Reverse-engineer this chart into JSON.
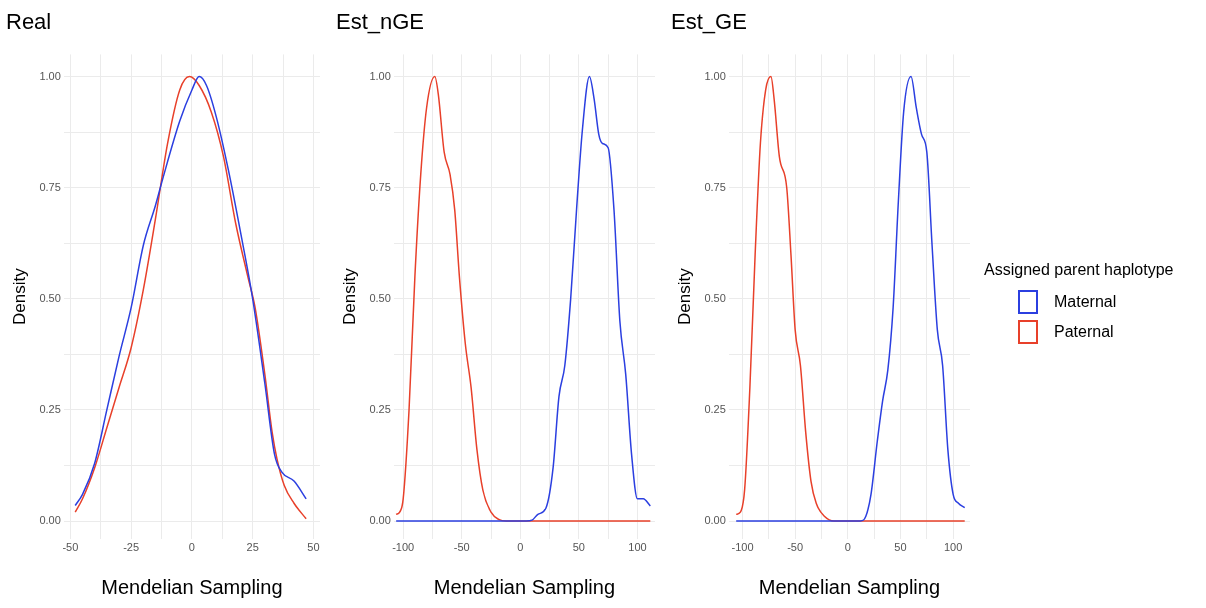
{
  "chart_data": [
    {
      "type": "line",
      "title": "Real",
      "xlabel": "Mendelian Sampling",
      "ylabel": "Density",
      "xlim": [
        -52.7,
        52.7
      ],
      "ylim": [
        -0.04,
        1.05
      ],
      "xticks": [
        -50,
        {
          "value": -37.5,
          "label": null
        },
        -25,
        {
          "value": -12.5,
          "label": null
        },
        0,
        {
          "value": 12.5,
          "label": null
        },
        25,
        {
          "value": 37.5,
          "label": null
        },
        50
      ],
      "yticks": [
        {
          "value": 0,
          "label": "0.00"
        },
        {
          "value": 0.125,
          "label": null
        },
        {
          "value": 0.25,
          "label": "0.25"
        },
        {
          "value": 0.375,
          "label": null
        },
        {
          "value": 0.5,
          "label": "0.50"
        },
        {
          "value": 0.625,
          "label": null
        },
        {
          "value": 0.75,
          "label": "0.75"
        },
        {
          "value": 0.875,
          "label": null
        },
        {
          "value": 1,
          "label": "1.00"
        }
      ],
      "grid": true,
      "legend": false,
      "marker": "none",
      "series": [
        {
          "color": "#2b3fe0",
          "x": [
            -48,
            -45,
            -40,
            -35,
            -30,
            -25,
            -20,
            -15,
            -12,
            -5,
            0,
            3,
            6,
            10,
            15,
            20,
            25,
            30,
            34,
            37,
            42,
            47
          ],
          "values": [
            0.035,
            0.06,
            0.13,
            0.25,
            0.37,
            0.48,
            0.62,
            0.71,
            0.77,
            0.9,
            0.97,
            1.0,
            0.98,
            0.91,
            0.79,
            0.65,
            0.5,
            0.31,
            0.15,
            0.11,
            0.09,
            0.05
          ]
        },
        {
          "color": "#e8402a",
          "x": [
            -48,
            -45,
            -40,
            -35,
            -30,
            -25,
            -20,
            -15,
            -10,
            -5,
            -1,
            3,
            8,
            13,
            18,
            23,
            26,
            30,
            33,
            35,
            38,
            42,
            47
          ],
          "values": [
            0.02,
            0.05,
            0.12,
            0.21,
            0.3,
            0.39,
            0.52,
            0.68,
            0.85,
            0.97,
            1.0,
            0.98,
            0.92,
            0.82,
            0.67,
            0.55,
            0.48,
            0.33,
            0.2,
            0.14,
            0.08,
            0.04,
            0.005
          ]
        }
      ]
    },
    {
      "type": "line",
      "title": "Est_nGE",
      "xlabel": "Mendelian Sampling",
      "ylabel": "Density",
      "xlim": [
        -108,
        115
      ],
      "ylim": [
        -0.04,
        1.05
      ],
      "xticks": [
        -100,
        {
          "value": -75,
          "label": null
        },
        -50,
        {
          "value": -25,
          "label": null
        },
        0,
        {
          "value": 25,
          "label": null
        },
        50,
        {
          "value": 75,
          "label": null
        },
        100
      ],
      "yticks": [
        {
          "value": 0,
          "label": "0.00"
        },
        {
          "value": 0.125,
          "label": null
        },
        {
          "value": 0.25,
          "label": "0.25"
        },
        {
          "value": 0.375,
          "label": null
        },
        {
          "value": 0.5,
          "label": "0.50"
        },
        {
          "value": 0.625,
          "label": null
        },
        {
          "value": 0.75,
          "label": "0.75"
        },
        {
          "value": 0.875,
          "label": null
        },
        {
          "value": 1,
          "label": "1.00"
        }
      ],
      "grid": true,
      "legend": false,
      "marker": "none",
      "series": [
        {
          "color": "#2b3fe0",
          "x": [
            -106,
            5,
            10,
            15,
            22,
            28,
            33,
            38,
            43,
            48,
            53,
            59,
            63,
            67,
            70,
            75,
            80,
            85,
            90,
            95,
            100,
            105,
            111
          ],
          "values": [
            0,
            0,
            0.002,
            0.015,
            0.03,
            0.12,
            0.28,
            0.35,
            0.5,
            0.7,
            0.88,
            1.0,
            0.95,
            0.87,
            0.85,
            0.84,
            0.7,
            0.45,
            0.33,
            0.15,
            0.05,
            0.05,
            0.034
          ]
        },
        {
          "color": "#e8402a",
          "x": [
            -106,
            -103,
            -100,
            -95,
            -90,
            -85,
            -80,
            -73,
            -70,
            -65,
            -60,
            -56,
            -52,
            -47,
            -42,
            -37,
            -32,
            -25,
            -18,
            -12,
            111
          ],
          "values": [
            0.015,
            0.02,
            0.05,
            0.25,
            0.55,
            0.78,
            0.93,
            1.0,
            0.96,
            0.83,
            0.78,
            0.7,
            0.55,
            0.4,
            0.3,
            0.16,
            0.07,
            0.02,
            0.003,
            0,
            0
          ]
        }
      ]
    },
    {
      "type": "line",
      "title": "Est_GE",
      "xlabel": "Mendelian Sampling",
      "ylabel": "Density",
      "xlim": [
        -113,
        116
      ],
      "ylim": [
        -0.04,
        1.05
      ],
      "xticks": [
        -100,
        {
          "value": -75,
          "label": null
        },
        -50,
        {
          "value": -25,
          "label": null
        },
        0,
        {
          "value": 25,
          "label": null
        },
        50,
        {
          "value": 75,
          "label": null
        },
        100
      ],
      "yticks": [
        {
          "value": 0,
          "label": "0.00"
        },
        {
          "value": 0.125,
          "label": null
        },
        {
          "value": 0.25,
          "label": "0.25"
        },
        {
          "value": 0.375,
          "label": null
        },
        {
          "value": 0.5,
          "label": "0.50"
        },
        {
          "value": 0.625,
          "label": null
        },
        {
          "value": 0.75,
          "label": "0.75"
        },
        {
          "value": 0.875,
          "label": null
        },
        {
          "value": 1,
          "label": "1.00"
        }
      ],
      "grid": true,
      "legend": "right",
      "legend_title": "Assigned parent haplotype",
      "marker": "none",
      "series": [
        {
          "name": "Maternal",
          "color": "#2b3fe0",
          "x": [
            -106,
            12,
            17,
            22,
            28,
            33,
            38,
            43,
            48,
            53,
            60,
            65,
            70,
            75,
            80,
            85,
            90,
            95,
            100,
            105,
            111
          ],
          "values": [
            0,
            0,
            0.01,
            0.06,
            0.18,
            0.27,
            0.34,
            0.48,
            0.72,
            0.92,
            1.0,
            0.93,
            0.87,
            0.83,
            0.62,
            0.43,
            0.35,
            0.16,
            0.06,
            0.04,
            0.03
          ]
        },
        {
          "name": "Paternal",
          "color": "#e8402a",
          "x": [
            -106,
            -102,
            -98,
            -93,
            -88,
            -83,
            -78,
            -73,
            -70,
            -65,
            -58,
            -54,
            -50,
            -45,
            -40,
            -35,
            -30,
            -22,
            -13,
            111
          ],
          "values": [
            0.015,
            0.02,
            0.07,
            0.3,
            0.6,
            0.85,
            0.97,
            1.0,
            0.95,
            0.82,
            0.75,
            0.6,
            0.43,
            0.35,
            0.2,
            0.09,
            0.04,
            0.01,
            0,
            0
          ]
        }
      ]
    }
  ]
}
